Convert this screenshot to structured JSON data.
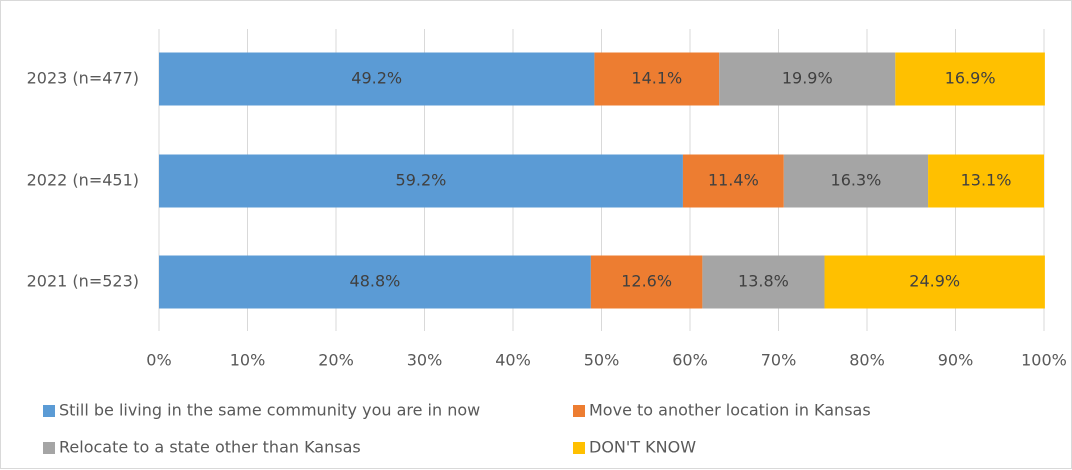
{
  "chart_data": {
    "type": "bar",
    "orientation": "horizontal",
    "stacked": true,
    "categories": [
      "2023 (n=477)",
      "2022 (n=451)",
      "2021 (n=523)"
    ],
    "series": [
      {
        "name": "Still be living in the same community you are in now",
        "color": "#5b9bd5",
        "values": [
          49.2,
          59.2,
          48.8
        ],
        "labels": [
          "49.2%",
          "59.2%",
          "48.8%"
        ]
      },
      {
        "name": "Move to another location in Kansas",
        "color": "#ed7d31",
        "values": [
          14.1,
          11.4,
          12.6
        ],
        "labels": [
          "14.1%",
          "11.4%",
          "12.6%"
        ]
      },
      {
        "name": "Relocate to a state other than Kansas",
        "color": "#a5a5a5",
        "values": [
          19.9,
          16.3,
          13.8
        ],
        "labels": [
          "19.9%",
          "16.3%",
          "13.8%"
        ]
      },
      {
        "name": "DON'T KNOW",
        "color": "#ffc000",
        "values": [
          16.9,
          13.1,
          24.9
        ],
        "labels": [
          "16.9%",
          "13.1%",
          "24.9%"
        ]
      }
    ],
    "xlim": [
      0,
      100
    ],
    "x_ticks": [
      "0%",
      "10%",
      "20%",
      "30%",
      "40%",
      "50%",
      "60%",
      "70%",
      "80%",
      "90%",
      "100%"
    ],
    "grid": "vertical",
    "legend_position": "bottom",
    "title": "",
    "xlabel": "",
    "ylabel": ""
  }
}
